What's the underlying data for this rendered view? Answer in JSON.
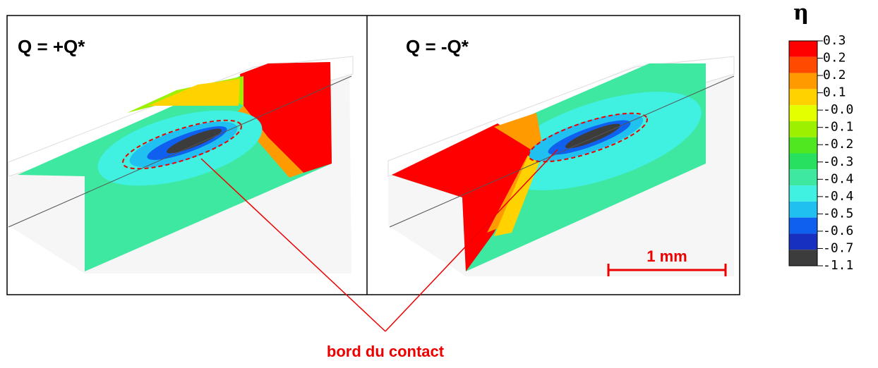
{
  "panels": [
    {
      "label": "Q = +Q*"
    },
    {
      "label": "Q = -Q*"
    }
  ],
  "legend": {
    "title": "η",
    "labels": [
      "0.3",
      "0.2",
      "0.2",
      "0.1",
      "-0.0",
      "-0.1",
      "-0.2",
      "-0.3",
      "-0.4",
      "-0.4",
      "-0.5",
      "-0.6",
      "-0.7",
      "-1.1"
    ],
    "colors": [
      "#ff0000",
      "#ff4a00",
      "#ff9a00",
      "#ffd200",
      "#e4ff00",
      "#9cf000",
      "#50e620",
      "#28e060",
      "#3ee8a0",
      "#40f0e0",
      "#20c0f0",
      "#1060f0",
      "#1830c0",
      "#3c3c3c"
    ]
  },
  "scale_bar": {
    "label": "1 mm"
  },
  "annotation": {
    "text": "bord du contact"
  }
}
